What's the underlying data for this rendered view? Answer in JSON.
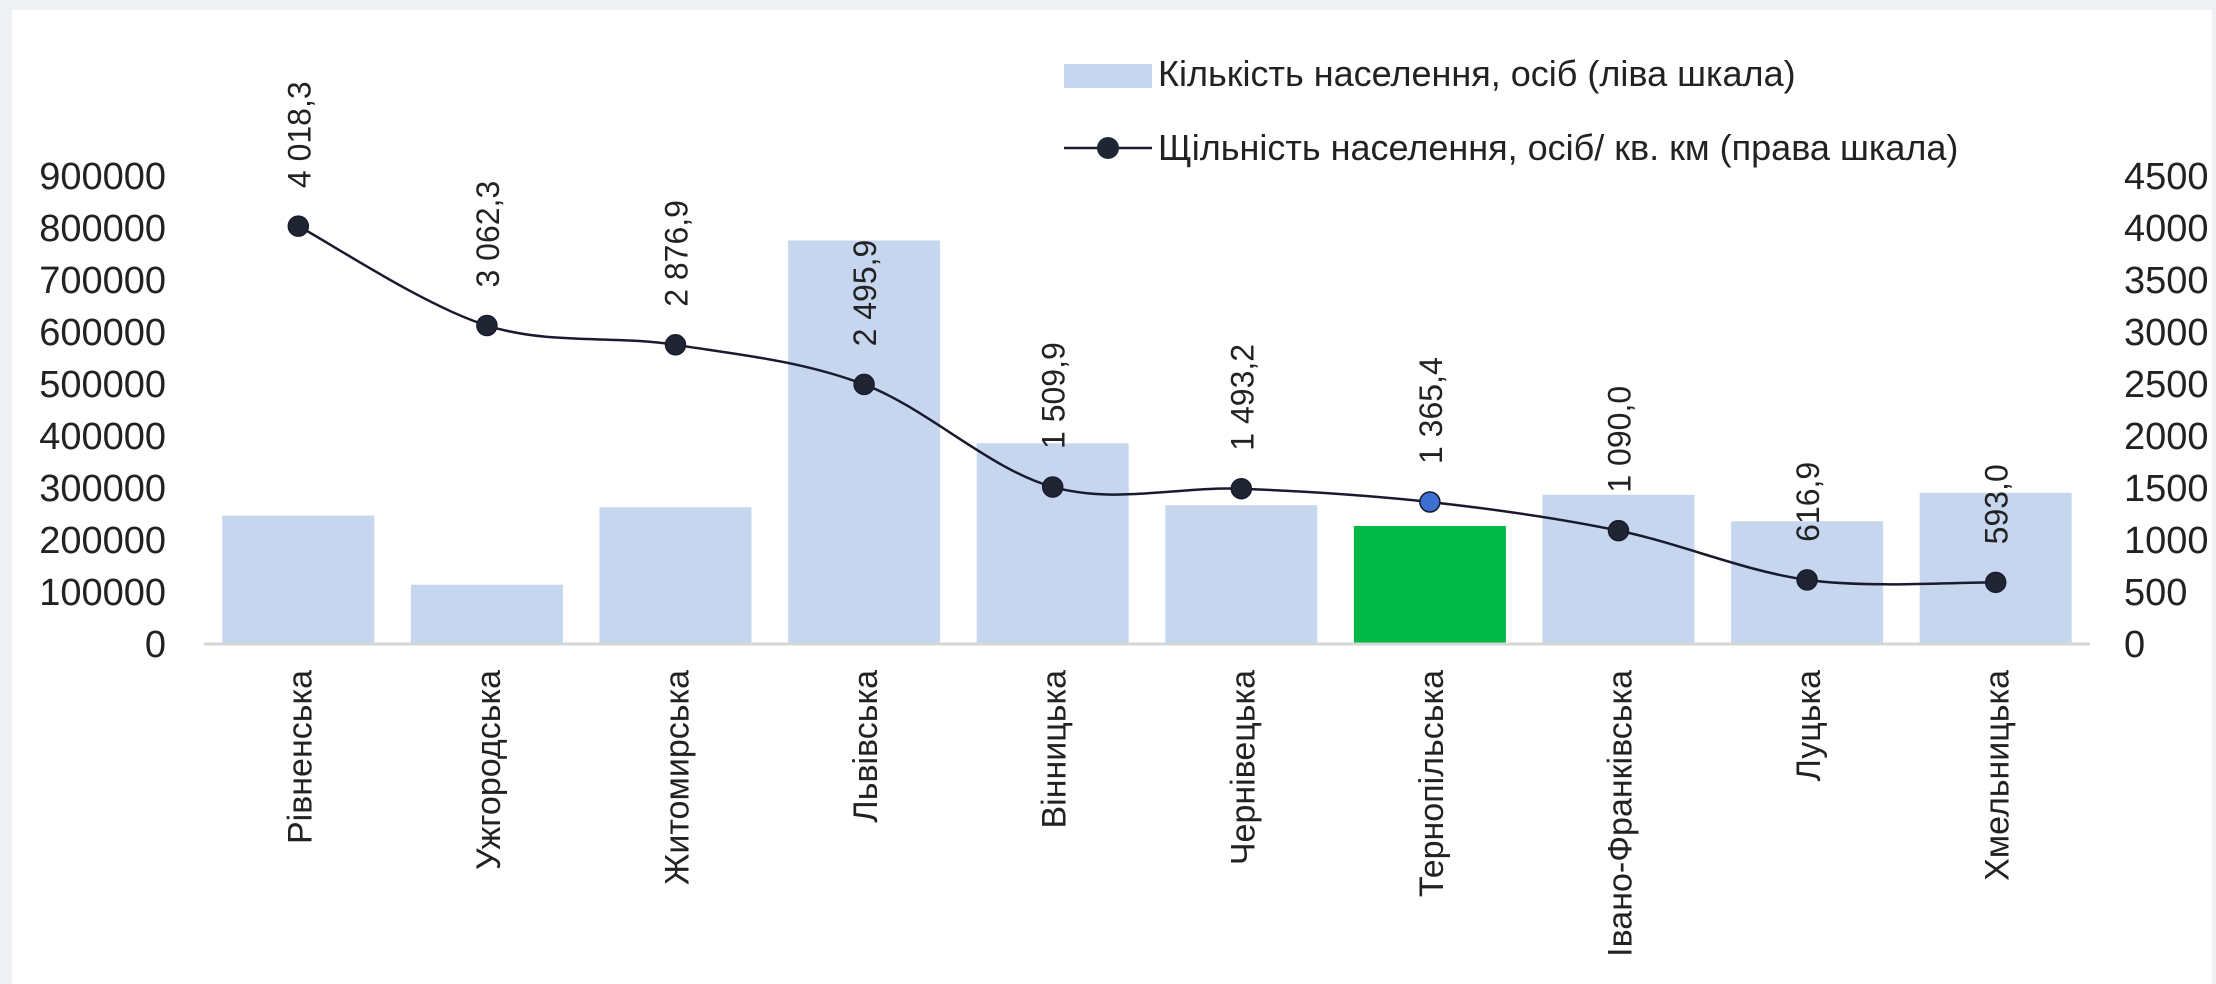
{
  "chart_data": {
    "type": "bar",
    "categories": [
      "Рівненська",
      "Ужгородська",
      "Житомирська",
      "Львівська",
      "Вінницька",
      "Чернівецька",
      "Тернопільська",
      "Івано-Франківська",
      "Луцька",
      "Хмельницька"
    ],
    "series": [
      {
        "name": "Кількість населення, осіб (ліва шкала)",
        "type": "bar",
        "axis": "left",
        "color": "#c5d6ee",
        "highlight_color": "#00b845",
        "highlight_index": 6,
        "values": [
          247000,
          114000,
          263000,
          776000,
          386000,
          267000,
          227000,
          287000,
          236000,
          291000
        ]
      },
      {
        "name": "Щільність населення, осіб/ кв. км (права шкала)",
        "type": "line",
        "axis": "right",
        "color": "#1a1a2e",
        "marker_color": "#1f2533",
        "highlight_marker_color": "#3b6fd1",
        "highlight_index": 6,
        "values": [
          4018.3,
          3062.3,
          2876.9,
          2495.9,
          1509.9,
          1493.2,
          1365.4,
          1090.0,
          616.9,
          593.0
        ],
        "data_labels": [
          "4 018,3",
          "3 062,3",
          "2 876,9",
          "2 495,9",
          "1 509,9",
          "1 493,2",
          "1 365,4",
          "1 090,0",
          "616,9",
          "593,0"
        ]
      }
    ],
    "y_left": {
      "min": 0,
      "max": 900000,
      "ticks": [
        "0",
        "100000",
        "200000",
        "300000",
        "400000",
        "500000",
        "600000",
        "700000",
        "800000",
        "900000"
      ]
    },
    "y_right": {
      "min": 0,
      "max": 4500,
      "ticks": [
        "0",
        "500",
        "1000",
        "1500",
        "2000",
        "2500",
        "3000",
        "3500",
        "4000",
        "4500"
      ]
    },
    "grid": false,
    "legend_position": "top-right"
  }
}
